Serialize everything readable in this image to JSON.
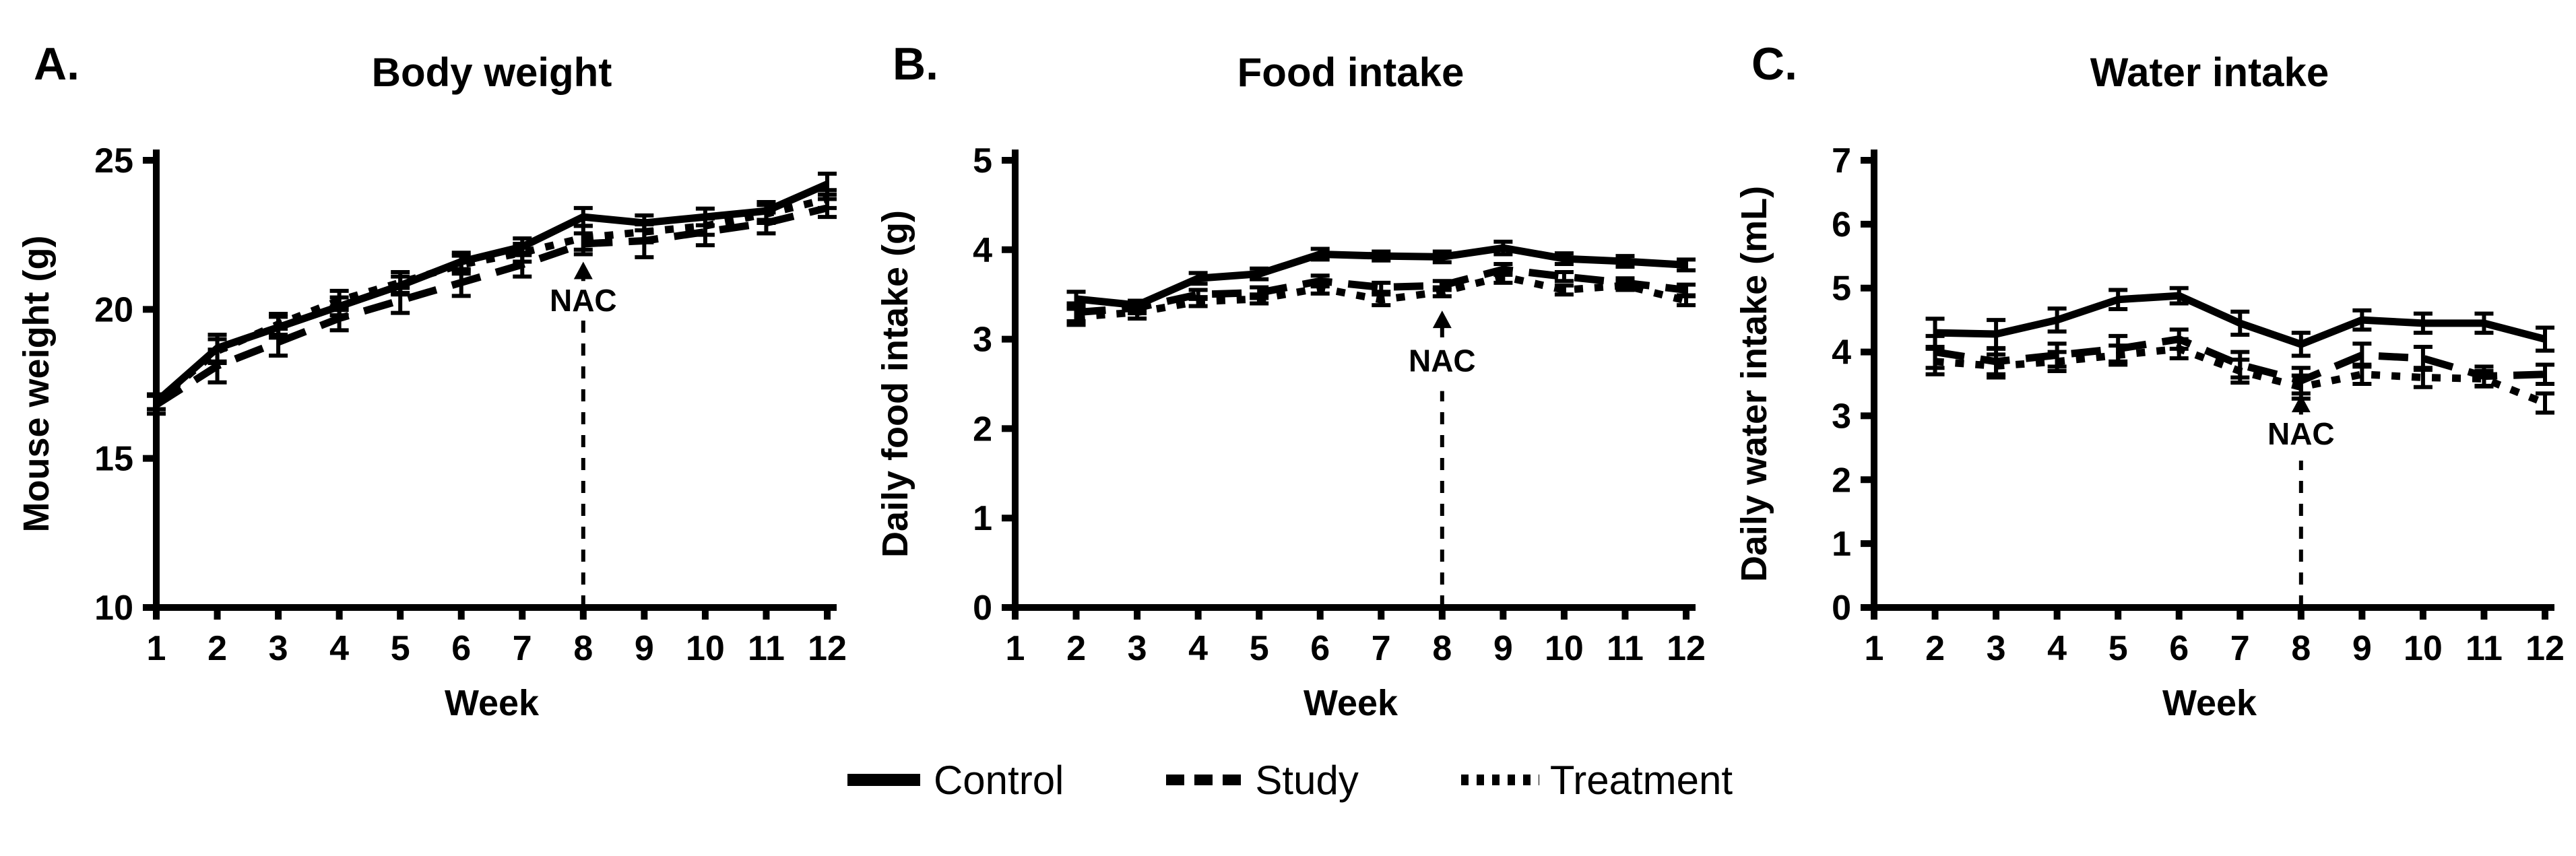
{
  "figure": {
    "background": "#ffffff",
    "ink": "#000000"
  },
  "legend": {
    "items": [
      {
        "label": "Control",
        "style": "solid"
      },
      {
        "label": "Study",
        "style": "dashed"
      },
      {
        "label": "Treatment",
        "style": "dotted"
      }
    ]
  },
  "chart_data": [
    {
      "type": "line",
      "letter": "A.",
      "title": "Body weight",
      "xlabel": "Week",
      "ylabel": "Mouse weight (g)",
      "ylim": [
        10,
        25
      ],
      "yticks": [
        10,
        15,
        20,
        25
      ],
      "xticks": [
        1,
        2,
        3,
        4,
        5,
        6,
        7,
        8,
        9,
        10,
        11,
        12
      ],
      "x": [
        1,
        2,
        3,
        4,
        5,
        6,
        7,
        8,
        9,
        10,
        11,
        12
      ],
      "annotation": {
        "label": "NAC",
        "week": 8,
        "line_top": 19.7,
        "text_y": 20.3,
        "arrow_base": 20.95,
        "arrow_tip": 21.6
      },
      "series": [
        {
          "name": "Control",
          "style": "solid",
          "values": [
            16.9,
            18.7,
            19.4,
            20.1,
            20.8,
            21.6,
            22.1,
            23.1,
            22.9,
            23.1,
            23.3,
            24.2
          ],
          "errors": [
            0.25,
            0.45,
            0.35,
            0.3,
            0.3,
            0.3,
            0.28,
            0.3,
            0.25,
            0.28,
            0.3,
            0.35
          ]
        },
        {
          "name": "Study",
          "style": "dashed",
          "values": [
            16.8,
            18.1,
            18.9,
            19.7,
            20.3,
            20.9,
            21.5,
            22.2,
            22.3,
            22.6,
            22.9,
            23.4
          ],
          "errors": [
            0.3,
            0.55,
            0.45,
            0.4,
            0.42,
            0.45,
            0.4,
            0.35,
            0.55,
            0.45,
            0.35,
            0.3
          ]
        },
        {
          "name": "Treatment",
          "style": "dotted",
          "values": [
            16.9,
            18.6,
            19.5,
            20.3,
            20.9,
            21.5,
            21.9,
            22.4,
            22.6,
            22.8,
            23.2,
            23.7
          ],
          "errors": [
            0.25,
            0.4,
            0.35,
            0.32,
            0.35,
            0.3,
            0.3,
            0.4,
            0.35,
            0.3,
            0.3,
            0.3
          ]
        }
      ]
    },
    {
      "type": "line",
      "letter": "B.",
      "title": "Food intake",
      "xlabel": "Week",
      "ylabel": "Daily food intake (g)",
      "ylim": [
        0,
        5
      ],
      "yticks": [
        0,
        1,
        2,
        3,
        4,
        5
      ],
      "xticks": [
        1,
        2,
        3,
        4,
        5,
        6,
        7,
        8,
        9,
        10,
        11,
        12
      ],
      "x": [
        2,
        3,
        4,
        5,
        6,
        7,
        8,
        9,
        10,
        11,
        12
      ],
      "annotation": {
        "label": "NAC",
        "week": 8,
        "line_top": 2.42,
        "text_y": 2.76,
        "arrow_base": 3.02,
        "arrow_tip": 3.32
      },
      "series": [
        {
          "name": "Control",
          "style": "solid",
          "values": [
            3.45,
            3.38,
            3.68,
            3.73,
            3.95,
            3.93,
            3.92,
            4.02,
            3.9,
            3.87,
            3.83
          ],
          "errors": [
            0.08,
            0.05,
            0.06,
            0.06,
            0.06,
            0.05,
            0.06,
            0.07,
            0.06,
            0.06,
            0.06
          ]
        },
        {
          "name": "Study",
          "style": "dashed",
          "values": [
            3.3,
            3.35,
            3.5,
            3.52,
            3.65,
            3.58,
            3.6,
            3.78,
            3.7,
            3.63,
            3.55
          ],
          "errors": [
            0.1,
            0.06,
            0.05,
            0.06,
            0.06,
            0.05,
            0.05,
            0.06,
            0.05,
            0.05,
            0.06
          ]
        },
        {
          "name": "Treatment",
          "style": "dotted",
          "values": [
            3.25,
            3.3,
            3.42,
            3.45,
            3.57,
            3.44,
            3.53,
            3.7,
            3.55,
            3.6,
            3.43
          ],
          "errors": [
            0.09,
            0.07,
            0.05,
            0.05,
            0.06,
            0.06,
            0.05,
            0.07,
            0.05,
            0.05,
            0.05
          ]
        }
      ]
    },
    {
      "type": "line",
      "letter": "C.",
      "title": "Water intake",
      "xlabel": "Week",
      "ylabel": "Daily water intake (mL)",
      "ylim": [
        0,
        7
      ],
      "yticks": [
        0,
        1,
        2,
        3,
        4,
        5,
        6,
        7
      ],
      "xticks": [
        1,
        2,
        3,
        4,
        5,
        6,
        7,
        8,
        9,
        10,
        11,
        12
      ],
      "x": [
        2,
        3,
        4,
        5,
        6,
        7,
        8,
        9,
        10,
        11,
        12
      ],
      "annotation": {
        "label": "NAC",
        "week": 8,
        "line_top": 2.3,
        "text_y": 2.72,
        "arrow_base": 3.02,
        "arrow_tip": 3.33
      },
      "series": [
        {
          "name": "Control",
          "style": "solid",
          "values": [
            4.3,
            4.28,
            4.5,
            4.82,
            4.88,
            4.45,
            4.12,
            4.5,
            4.45,
            4.45,
            4.2
          ],
          "errors": [
            0.22,
            0.22,
            0.18,
            0.15,
            0.12,
            0.18,
            0.18,
            0.15,
            0.15,
            0.15,
            0.18
          ]
        },
        {
          "name": "Study",
          "style": "dashed",
          "values": [
            4.0,
            3.85,
            3.95,
            4.05,
            4.2,
            3.8,
            3.55,
            3.95,
            3.9,
            3.62,
            3.65
          ],
          "errors": [
            0.25,
            0.2,
            0.18,
            0.2,
            0.15,
            0.2,
            0.2,
            0.18,
            0.18,
            0.15,
            0.15
          ]
        },
        {
          "name": "Treatment",
          "style": "dotted",
          "values": [
            3.85,
            3.78,
            3.85,
            3.95,
            4.05,
            3.7,
            3.45,
            3.65,
            3.6,
            3.58,
            3.2
          ],
          "errors": [
            0.2,
            0.18,
            0.15,
            0.15,
            0.15,
            0.18,
            0.18,
            0.15,
            0.15,
            0.12,
            0.15
          ]
        }
      ]
    }
  ]
}
